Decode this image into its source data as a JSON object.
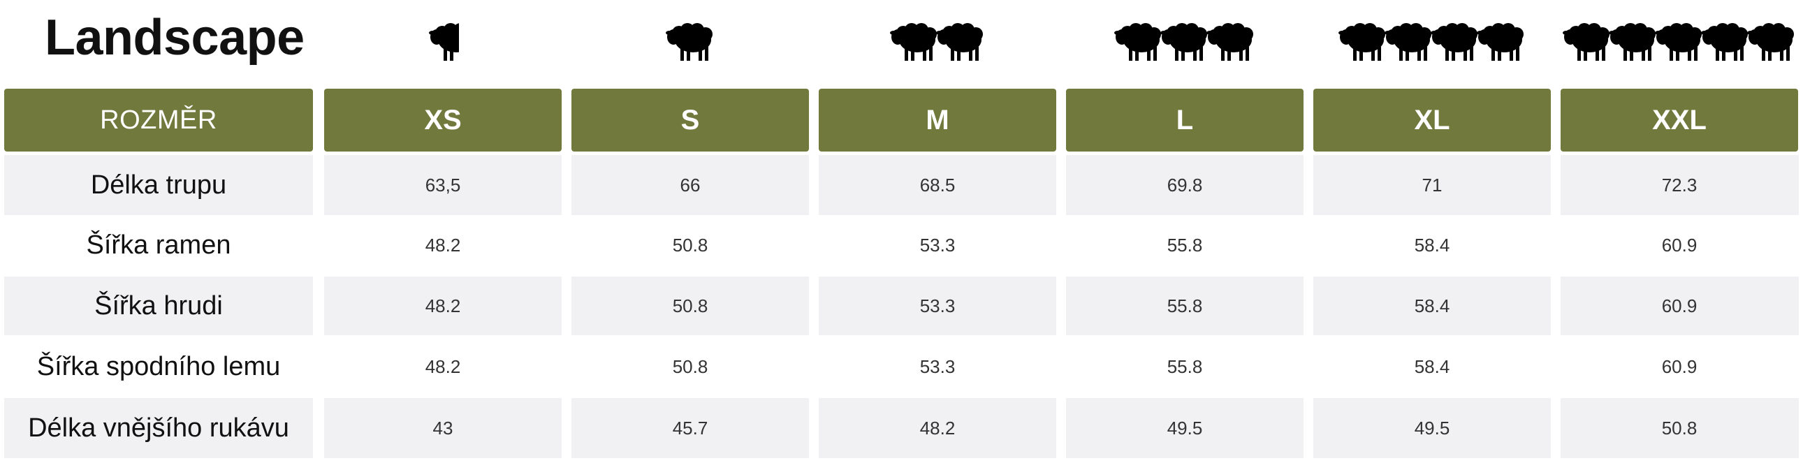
{
  "title": "Landscape",
  "header": {
    "first_label": "ROZMĚR",
    "sizes": [
      "XS",
      "S",
      "M",
      "L",
      "XL",
      "XXL"
    ]
  },
  "sheep_icons": [
    "half-sheep-icon",
    "sheep-icon",
    "sheep-icon",
    "sheep-icon",
    "sheep-icon",
    "sheep-icon"
  ],
  "sheep_counts": [
    0.5,
    1,
    2,
    3,
    4,
    5
  ],
  "colors": {
    "header_bg": "#71793d",
    "stripe_bg": "#f1f1f3"
  },
  "rows": [
    {
      "label": "Délka trupu",
      "values": [
        "63,5",
        "66",
        "68.5",
        "69.8",
        "71",
        "72.3"
      ]
    },
    {
      "label": "Šířka ramen",
      "values": [
        "48.2",
        "50.8",
        "53.3",
        "55.8",
        "58.4",
        "60.9"
      ]
    },
    {
      "label": "Šířka hrudi",
      "values": [
        "48.2",
        "50.8",
        "53.3",
        "55.8",
        "58.4",
        "60.9"
      ]
    },
    {
      "label": "Šířka spodního lemu",
      "values": [
        "48.2",
        "50.8",
        "53.3",
        "55.8",
        "58.4",
        "60.9"
      ]
    },
    {
      "label": "Délka vnějšího rukávu",
      "values": [
        "43",
        "45.7",
        "48.2",
        "49.5",
        "49.5",
        "50.8"
      ]
    }
  ]
}
